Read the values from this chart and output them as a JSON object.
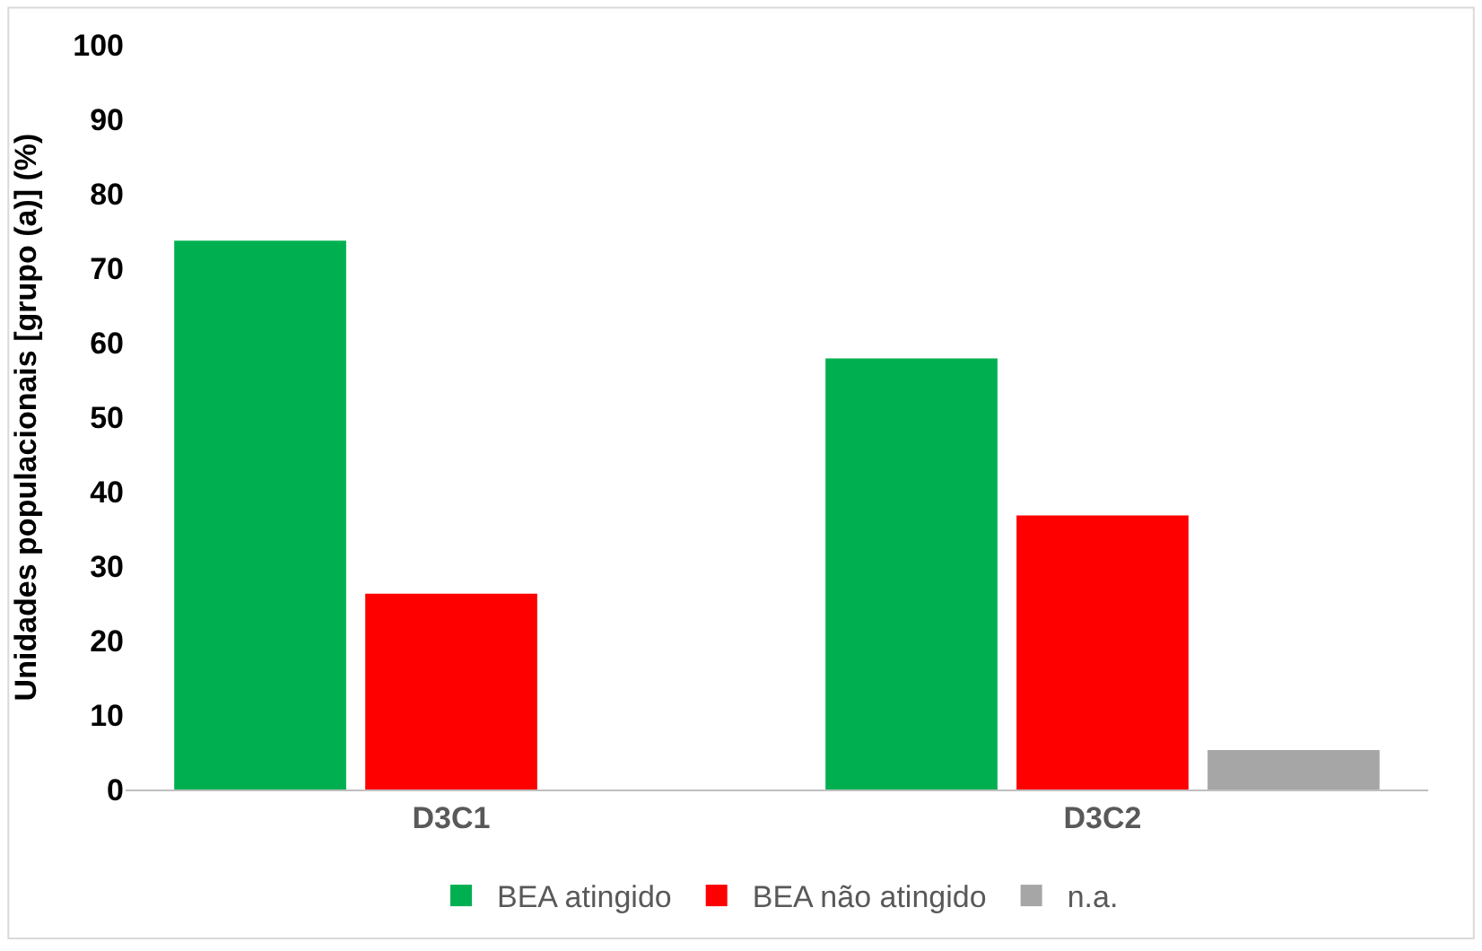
{
  "chart_data": {
    "type": "bar",
    "ylabel": "Unidades populacionais [grupo (a)] (%)",
    "categories": [
      "D3C1",
      "D3C2"
    ],
    "series": [
      {
        "name": "BEA atingido",
        "color": "#00b050",
        "values": [
          73.7,
          57.9
        ]
      },
      {
        "name": "BEA não atingido",
        "color": "#ff0000",
        "values": [
          26.3,
          36.8
        ]
      },
      {
        "name": "n.a.",
        "color": "#a6a6a6",
        "values": [
          null,
          5.3
        ]
      }
    ],
    "ylim": [
      0,
      100
    ],
    "yticks": [
      0,
      10,
      20,
      30,
      40,
      50,
      60,
      70,
      80,
      90,
      100
    ],
    "grid": false,
    "legend": "bottom"
  }
}
